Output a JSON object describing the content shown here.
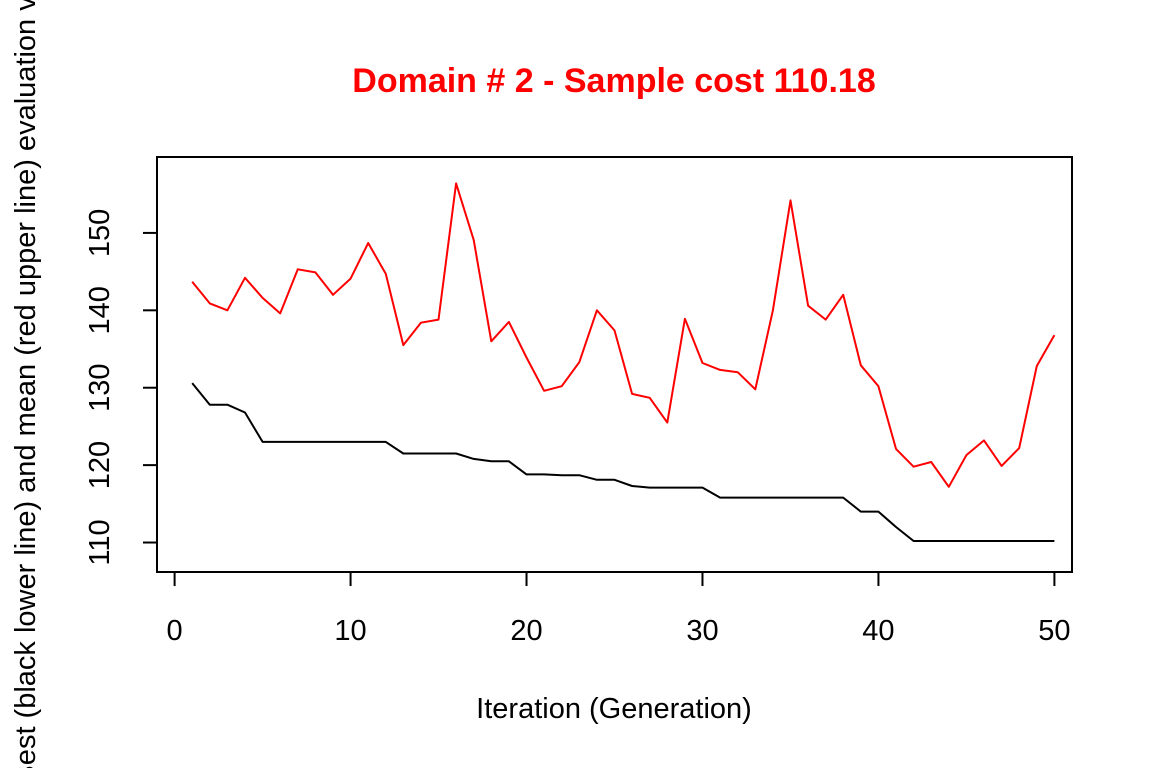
{
  "chart_data": {
    "type": "line",
    "title": "Domain # 2  - Sample cost 110.18",
    "xlabel": "Iteration (Generation)",
    "ylabel": "Best (black lower line) and mean (red upper line) evaluation value",
    "xlim": [
      0,
      50
    ],
    "ylim": [
      108,
      158
    ],
    "x_ticks": [
      0,
      10,
      20,
      30,
      40,
      50
    ],
    "y_ticks": [
      110,
      120,
      130,
      140,
      150
    ],
    "grid": false,
    "legend": "none",
    "x": [
      1,
      2,
      3,
      4,
      5,
      6,
      7,
      8,
      9,
      10,
      11,
      12,
      13,
      14,
      15,
      16,
      17,
      18,
      19,
      20,
      21,
      22,
      23,
      24,
      25,
      26,
      27,
      28,
      29,
      30,
      31,
      32,
      33,
      34,
      35,
      36,
      37,
      38,
      39,
      40,
      41,
      42,
      43,
      44,
      45,
      46,
      47,
      48,
      49,
      50
    ],
    "series": [
      {
        "color": "#ff0000",
        "values": [
          143.7,
          140.9,
          140.0,
          144.2,
          141.6,
          139.6,
          145.3,
          144.9,
          142.0,
          144.1,
          148.7,
          144.7,
          135.5,
          138.4,
          138.8,
          156.4,
          149.1,
          136.0,
          138.5,
          133.9,
          129.6,
          130.2,
          133.3,
          140.0,
          137.4,
          129.2,
          128.7,
          125.5,
          138.9,
          133.2,
          132.3,
          132.0,
          129.8,
          140.0,
          154.2,
          140.6,
          138.8,
          142.0,
          132.9,
          130.2,
          122.1,
          119.8,
          120.4,
          117.2,
          121.3,
          123.2,
          119.9,
          122.2,
          132.8,
          136.8
        ]
      },
      {
        "color": "#000000",
        "values": [
          130.6,
          127.8,
          127.8,
          126.8,
          123.0,
          123.0,
          123.0,
          123.0,
          123.0,
          123.0,
          123.0,
          123.0,
          121.5,
          121.5,
          121.5,
          121.5,
          120.8,
          120.5,
          120.5,
          118.8,
          118.8,
          118.7,
          118.7,
          118.1,
          118.1,
          117.3,
          117.1,
          117.1,
          117.1,
          117.1,
          115.8,
          115.8,
          115.8,
          115.8,
          115.8,
          115.8,
          115.8,
          115.8,
          114.0,
          114.0,
          112.0,
          110.2,
          110.2,
          110.2,
          110.2,
          110.2,
          110.2,
          110.2,
          110.2,
          110.2
        ]
      }
    ]
  }
}
